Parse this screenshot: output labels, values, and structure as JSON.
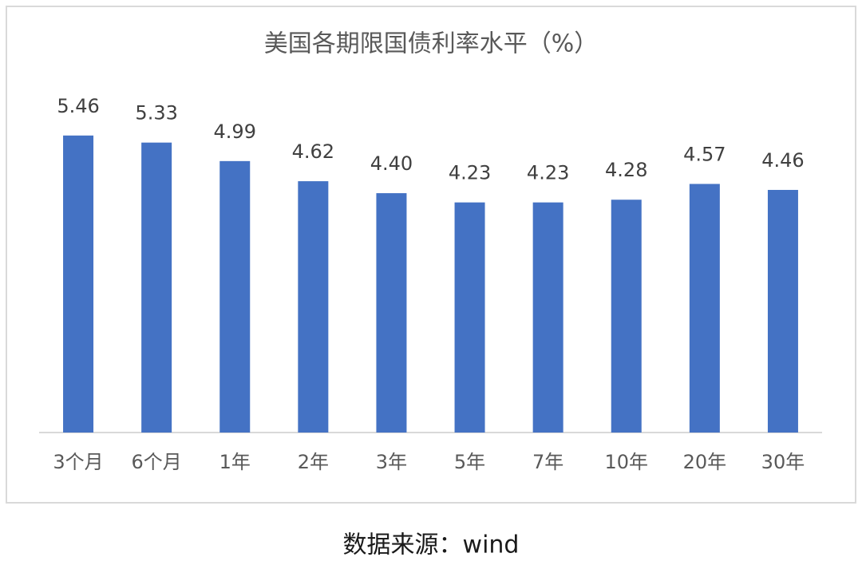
{
  "chart_data": {
    "type": "bar",
    "title": "美国各期限国债利率水平（%）",
    "categories": [
      "3个月",
      "6个月",
      "1年",
      "2年",
      "3年",
      "5年",
      "7年",
      "10年",
      "20年",
      "30年"
    ],
    "values": [
      5.46,
      5.33,
      4.99,
      4.62,
      4.4,
      4.23,
      4.23,
      4.28,
      4.57,
      4.46
    ],
    "value_labels": [
      "5.46",
      "5.33",
      "4.99",
      "4.62",
      "4.40",
      "4.23",
      "4.23",
      "4.28",
      "4.57",
      "4.46"
    ],
    "color": "#4472c4",
    "ylim": [
      0,
      6
    ]
  },
  "source": "数据来源：wind"
}
